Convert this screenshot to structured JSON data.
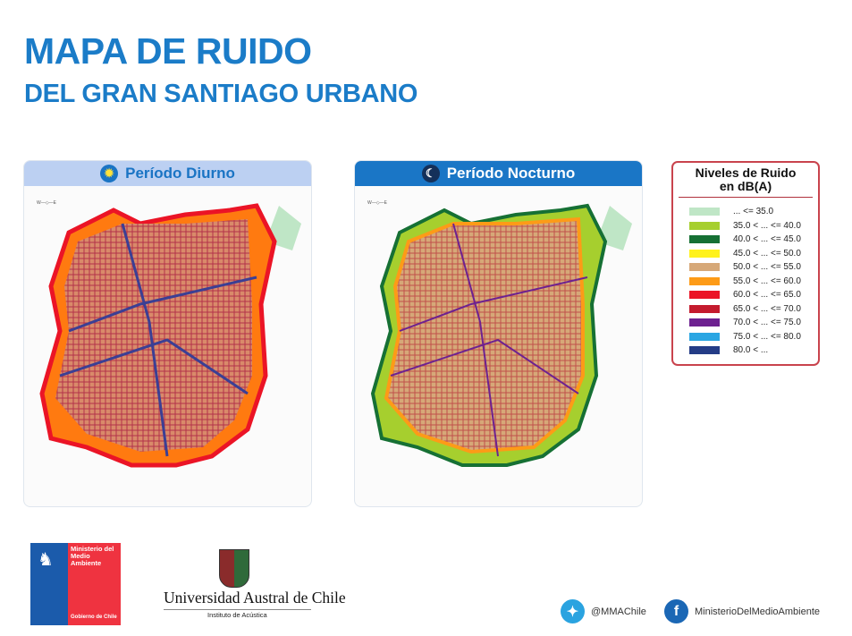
{
  "title": "MAPA DE RUIDO",
  "subtitle": "DEL GRAN SANTIAGO URBANO",
  "panels": [
    {
      "label": "Período Diurno",
      "icon": "sun-icon"
    },
    {
      "label": "Período Nocturno",
      "icon": "moon-icon"
    }
  ],
  "compass": {
    "n": "N",
    "s": "S",
    "e": "E",
    "w": "W"
  },
  "legend": {
    "title": "Niveles de Ruido",
    "title2": "en dB(A)",
    "items": [
      {
        "label": "... <= 35.0",
        "color": "#bfe6c6"
      },
      {
        "label": "35.0 < ... <= 40.0",
        "color": "#a6cf2e"
      },
      {
        "label": "40.0 < ... <= 45.0",
        "color": "#167034"
      },
      {
        "label": "45.0 < ... <= 50.0",
        "color": "#fff21c"
      },
      {
        "label": "50.0 < ... <= 55.0",
        "color": "#d6a878"
      },
      {
        "label": "55.0 < ... <= 60.0",
        "color": "#fd9b17"
      },
      {
        "label": "60.0 < ... <= 65.0",
        "color": "#eb1426"
      },
      {
        "label": "65.0 < ... <= 70.0",
        "color": "#c41b2e"
      },
      {
        "label": "70.0 < ... <= 75.0",
        "color": "#6d2190"
      },
      {
        "label": "75.0 < ... <= 80.0",
        "color": "#2aa6e3"
      },
      {
        "label": "80.0 < ...",
        "color": "#243c86"
      }
    ]
  },
  "logos": {
    "mma_line1": "Ministerio del",
    "mma_line2": "Medio",
    "mma_line3": "Ambiente",
    "mma_gob": "Gobierno de Chile",
    "uach": "Universidad Austral de Chile",
    "inst": "Instituto de Acústica"
  },
  "social": {
    "twitter": "@MMAChile",
    "facebook": "MinisterioDelMedioAmbiente"
  }
}
